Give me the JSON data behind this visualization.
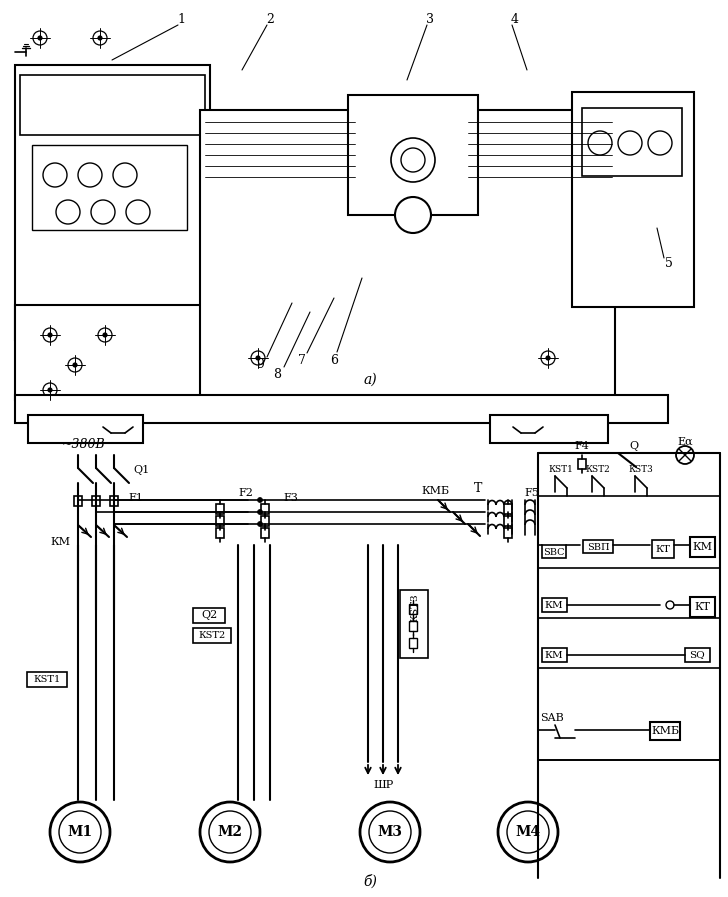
{
  "bg_color": "#ffffff",
  "line_color": "#000000",
  "fig_width": 7.28,
  "fig_height": 8.97,
  "dpi": 100,
  "labels": {
    "voltage": "~380В",
    "title_a": "а)",
    "title_b": "б)",
    "num1": "1",
    "num2": "2",
    "num3": "3",
    "num4": "4",
    "num5": "5",
    "num6": "6",
    "num7": "7",
    "num8": "8",
    "num9": "9",
    "Q1": "Q1",
    "F1": "F1",
    "F2": "F2",
    "F3": "F3",
    "F4": "F4",
    "F5": "F5",
    "Q2": "Q2",
    "KM": "КМ",
    "KMB": "КМБ",
    "KST1": "КSТ1",
    "KST2": "КSТ2",
    "KST3": "КSТ3",
    "T": "T",
    "Q": "Q",
    "Ea": "Eα",
    "SBC": "SBC",
    "SVP": "SВП",
    "SAB": "SAВ",
    "SQ": "SQ",
    "KT": "КТ",
    "M1": "М1",
    "M2": "М2",
    "M3": "М3",
    "M4": "М4",
    "SHP": "ШР"
  }
}
